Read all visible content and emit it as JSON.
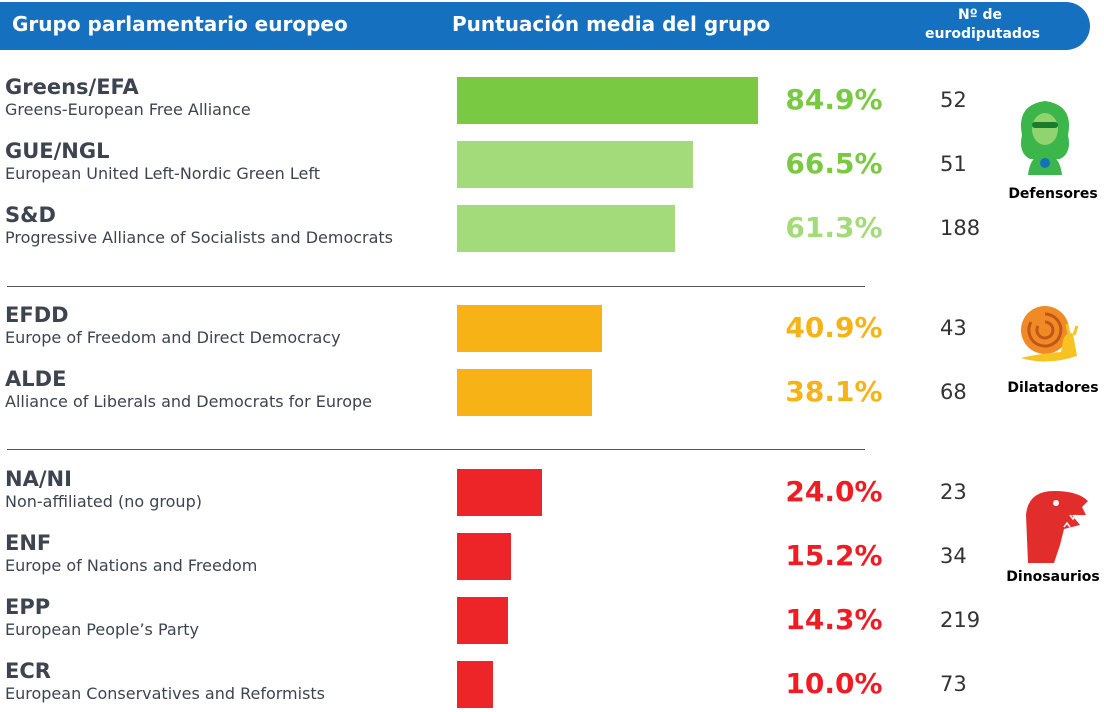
{
  "chart_data": {
    "type": "bar",
    "column_titles": [
      "Grupo parlamentario europeo",
      "Puntuación media del grupo",
      "Nº de eurodiputados"
    ],
    "groups": [
      {
        "name": "Defensores",
        "categories": [
          "Greens/EFA",
          "GUE/NGL",
          "S&D"
        ],
        "descriptions": [
          "Greens-European Free Alliance",
          "European United Left-Nordic Green Left",
          "Progressive Alliance of Socialists and Democrats"
        ],
        "values": [
          84.9,
          66.5,
          61.3
        ],
        "value_labels": [
          "84.9%",
          "66.5%",
          "61.3%"
        ],
        "colors": [
          "#7ac943",
          "#a3db7a",
          "#a3db7a"
        ],
        "label_colors": [
          "#7ac943",
          "#7ac943",
          "#a3db7a"
        ],
        "seats": [
          52,
          51,
          188
        ]
      },
      {
        "name": "Dilatadores",
        "categories": [
          "EFDD",
          "ALDE"
        ],
        "descriptions": [
          "Europe of Freedom and Direct Democracy",
          "Alliance of Liberals and Democrats for Europe"
        ],
        "values": [
          40.9,
          38.1
        ],
        "value_labels": [
          "40.9%",
          "38.1%"
        ],
        "colors": [
          "#f7b216",
          "#f7b216"
        ],
        "label_colors": [
          "#f7b216",
          "#f7b216"
        ],
        "seats": [
          43,
          68
        ]
      },
      {
        "name": "Dinosaurios",
        "categories": [
          "NA/NI",
          "ENF",
          "EPP",
          "ECR"
        ],
        "descriptions": [
          "Non-affiliated (no group)",
          "Europe of Nations and Freedom",
          "European People’s Party",
          "European Conservatives and Reformists"
        ],
        "values": [
          24.0,
          15.2,
          14.3,
          10.0
        ],
        "value_labels": [
          "24.0%",
          "15.2%",
          "14.3%",
          "10.0%"
        ],
        "colors": [
          "#ee2528",
          "#ee2528",
          "#ee2528",
          "#ee2528"
        ],
        "label_colors": [
          "#ee1c25",
          "#ee1c25",
          "#ee1c25",
          "#ee1c25"
        ],
        "seats": [
          23,
          34,
          219,
          73
        ]
      }
    ]
  }
}
